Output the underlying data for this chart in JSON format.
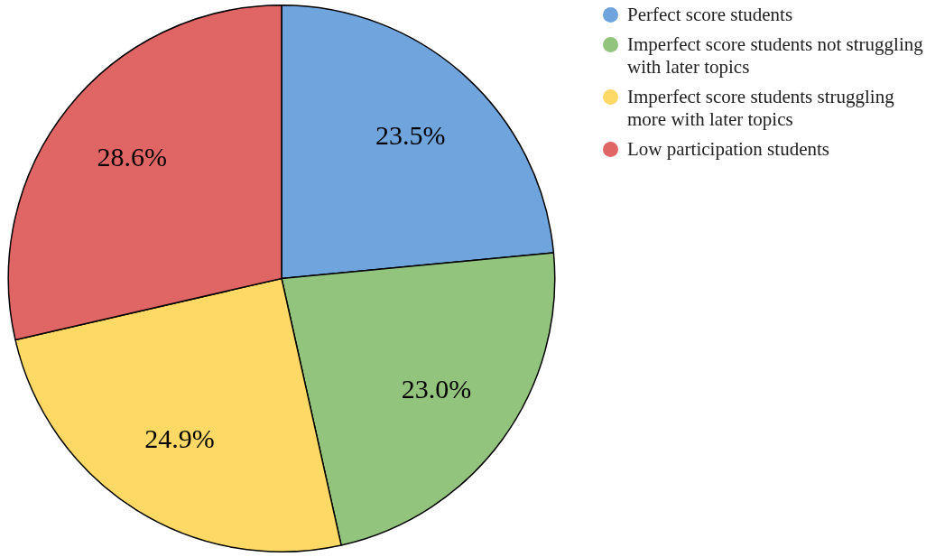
{
  "chart_data": {
    "type": "pie",
    "categories": [
      "Perfect score students",
      "Imperfect score students not struggling with later topics",
      "Imperfect score students struggling more with later topics",
      "Low participation students"
    ],
    "values": [
      23.5,
      23.0,
      24.9,
      28.6
    ],
    "colors": [
      "#6fa4dc",
      "#93c47d",
      "#ffd966",
      "#e06666"
    ],
    "value_labels": [
      "23.5%",
      "23.0%",
      "24.9%",
      "28.6%"
    ],
    "legend": "top right"
  }
}
